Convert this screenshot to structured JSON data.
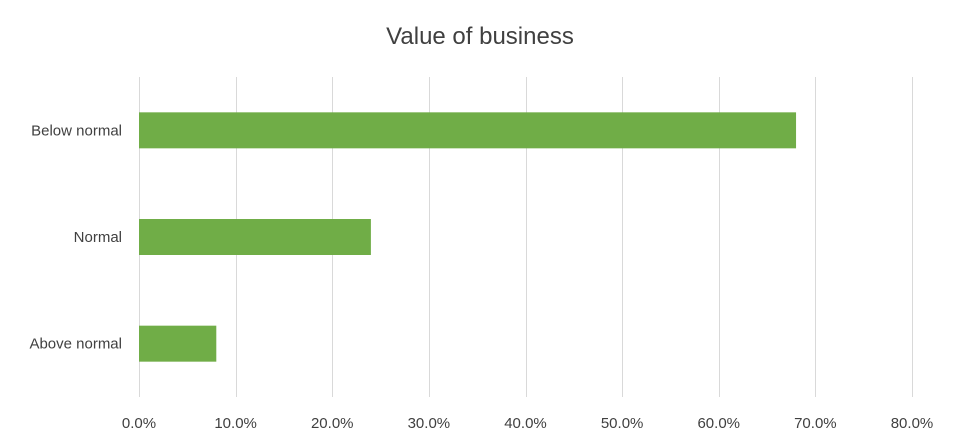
{
  "chart_data": {
    "type": "bar",
    "orientation": "horizontal",
    "title": "Value of business",
    "categories": [
      "Below normal",
      "Normal",
      "Above normal"
    ],
    "values": [
      0.68,
      0.24,
      0.08
    ],
    "xlim": [
      0,
      0.8
    ],
    "x_ticks": [
      0,
      0.1,
      0.2,
      0.3,
      0.4,
      0.5,
      0.6,
      0.7,
      0.8
    ],
    "x_tick_labels": [
      "0.0%",
      "10.0%",
      "20.0%",
      "30.0%",
      "40.0%",
      "50.0%",
      "60.0%",
      "70.0%",
      "80.0%"
    ],
    "xlabel": "",
    "ylabel": "",
    "grid": true,
    "legend": "none",
    "bar_color": "#70ad47"
  }
}
